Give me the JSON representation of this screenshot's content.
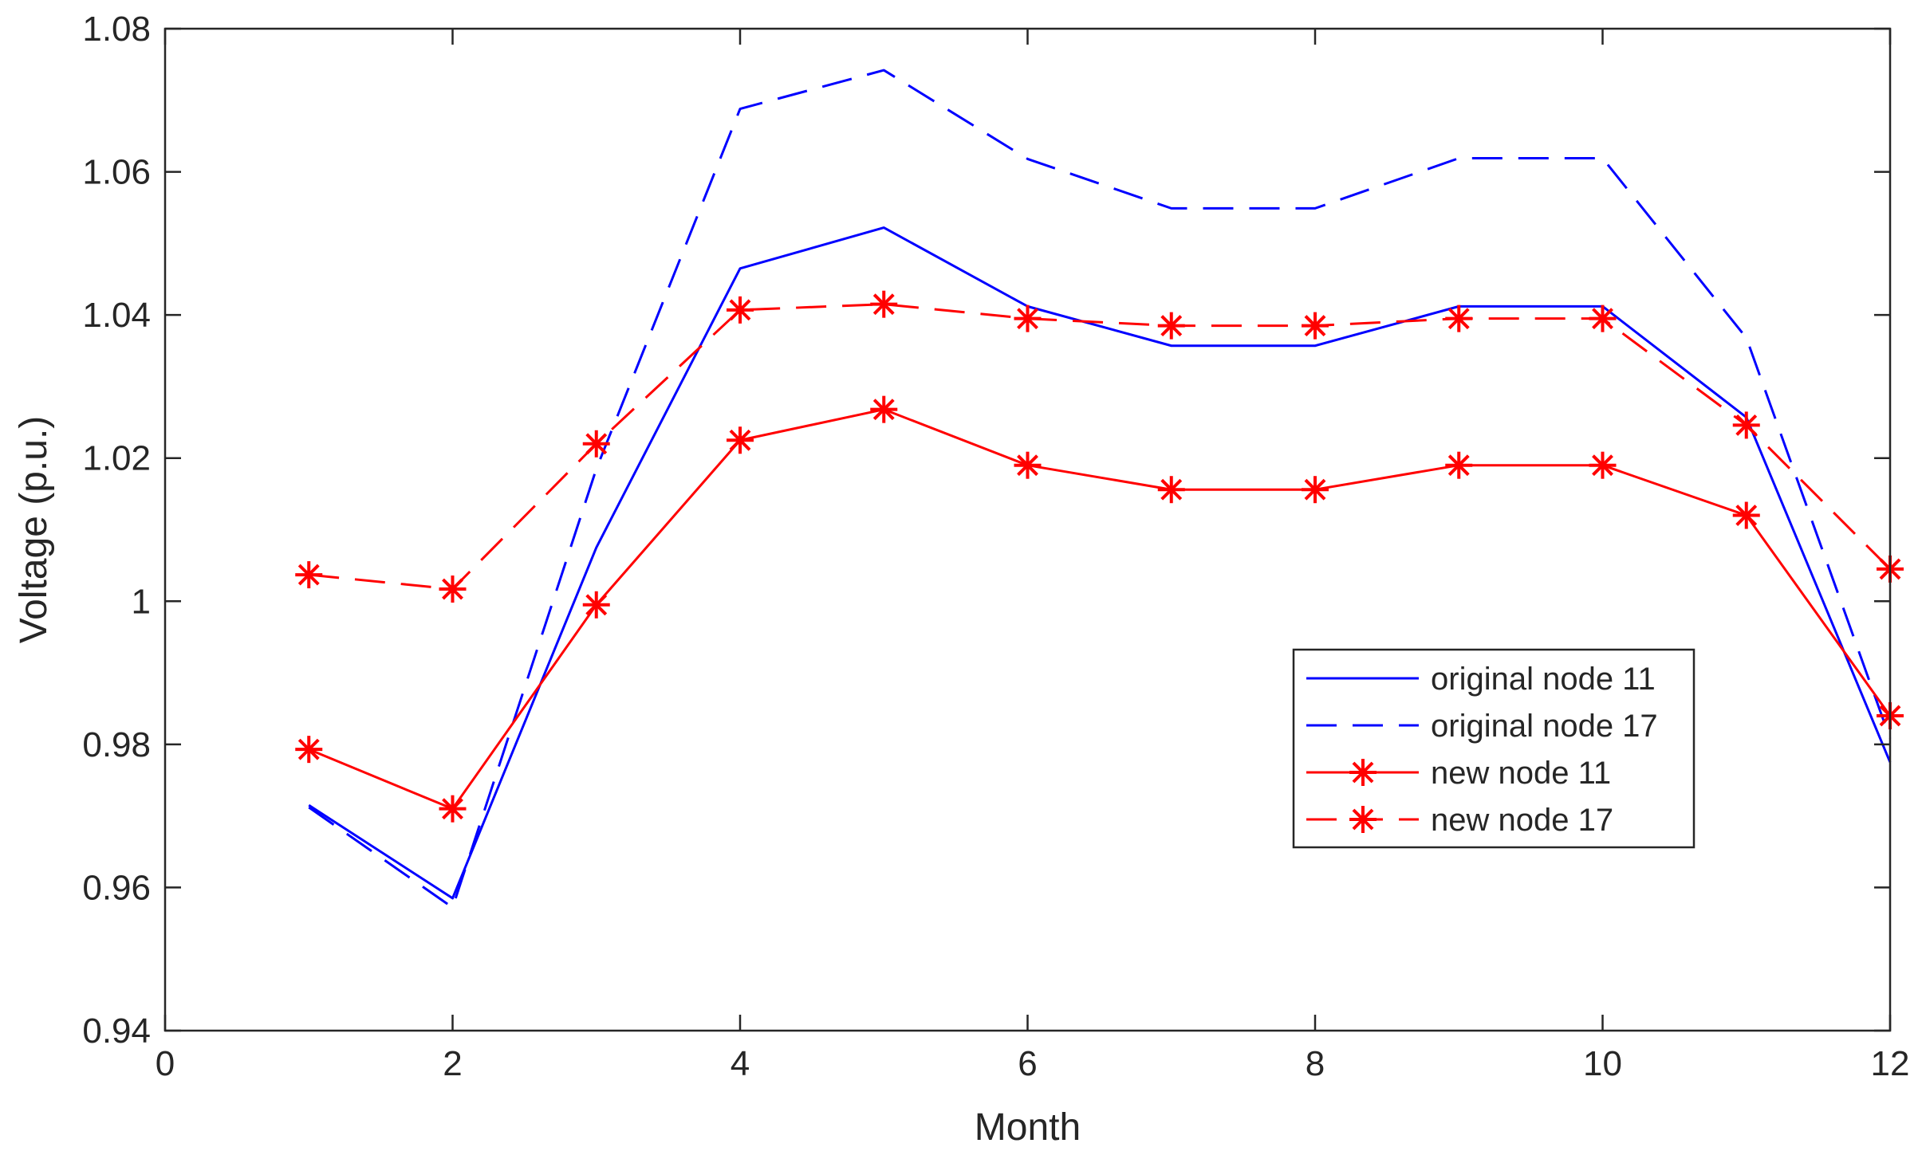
{
  "chart_data": {
    "type": "line",
    "title": "",
    "xlabel": "Month",
    "ylabel": "Voltage (p.u.)",
    "xlim": [
      0,
      12
    ],
    "ylim": [
      0.94,
      1.08
    ],
    "xticks": [
      0,
      2,
      4,
      6,
      8,
      10,
      12
    ],
    "xtick_labels": [
      "0",
      "2",
      "4",
      "6",
      "8",
      "10",
      "12"
    ],
    "yticks": [
      0.94,
      0.96,
      0.98,
      1.0,
      1.02,
      1.04,
      1.06,
      1.08
    ],
    "ytick_labels": [
      "0.94",
      "0.96",
      "0.98",
      "1",
      "1.02",
      "1.04",
      "1.06",
      "1.08"
    ],
    "grid": false,
    "legend_position": "lower-right",
    "x": [
      1,
      2,
      3,
      4,
      5,
      6,
      7,
      8,
      9,
      10,
      11,
      12
    ],
    "series": [
      {
        "name": "original node 11",
        "color": "#0000ff",
        "line_style": "solid",
        "marker": "none",
        "values": [
          0.9715,
          0.9585,
          1.0075,
          1.0465,
          1.0522,
          1.0412,
          1.0357,
          1.0357,
          1.0412,
          1.0412,
          1.0257,
          0.9775
        ]
      },
      {
        "name": "original node 17",
        "color": "#0000ff",
        "line_style": "dashed",
        "marker": "none",
        "values": [
          0.9712,
          0.9572,
          1.0185,
          1.0688,
          1.0742,
          1.0618,
          1.0549,
          1.0549,
          1.0619,
          1.0619,
          1.0368,
          0.9808
        ]
      },
      {
        "name": "new node 11",
        "color": "#ff0000",
        "line_style": "solid",
        "marker": "asterisk",
        "values": [
          0.9793,
          0.971,
          0.9995,
          1.0225,
          1.0268,
          1.019,
          1.0156,
          1.0156,
          1.019,
          1.019,
          1.012,
          0.984
        ]
      },
      {
        "name": "new node 17",
        "color": "#ff0000",
        "line_style": "dashed",
        "marker": "asterisk",
        "values": [
          1.0037,
          1.0017,
          1.022,
          1.0407,
          1.0415,
          1.0395,
          1.0385,
          1.0385,
          1.0395,
          1.0395,
          1.0246,
          1.0045
        ]
      }
    ]
  }
}
